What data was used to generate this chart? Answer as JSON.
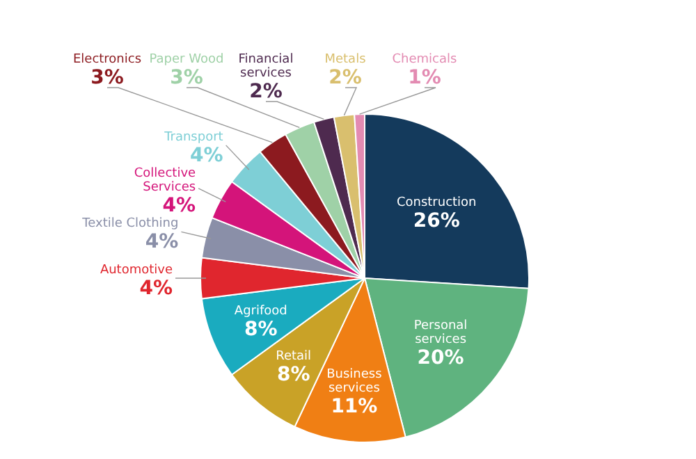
{
  "chart_data": {
    "type": "pie",
    "categories": [
      "Construction",
      "Personal services",
      "Business services",
      "Retail",
      "Agrifood",
      "Automotive",
      "Textile Clothing",
      "Collective Services",
      "Transport",
      "Electronics",
      "Paper Wood",
      "Financial services",
      "Metals",
      "Chemicals"
    ],
    "values": [
      26,
      20,
      11,
      8,
      8,
      4,
      4,
      4,
      4,
      3,
      3,
      2,
      2,
      1
    ],
    "value_labels": [
      "26%",
      "20%",
      "11%",
      "8%",
      "8%",
      "4%",
      "4%",
      "4%",
      "4%",
      "3%",
      "3%",
      "2%",
      "2%",
      "1%"
    ],
    "colors": [
      "#143a5c",
      "#5fb37f",
      "#f07f14",
      "#c9a227",
      "#1aabbf",
      "#e0262e",
      "#8a8fa8",
      "#d4147a",
      "#7ecfd6",
      "#8c1a1f",
      "#9fd1a7",
      "#4e2a4f",
      "#d9bf6e",
      "#e38bb2"
    ],
    "legend": false
  }
}
